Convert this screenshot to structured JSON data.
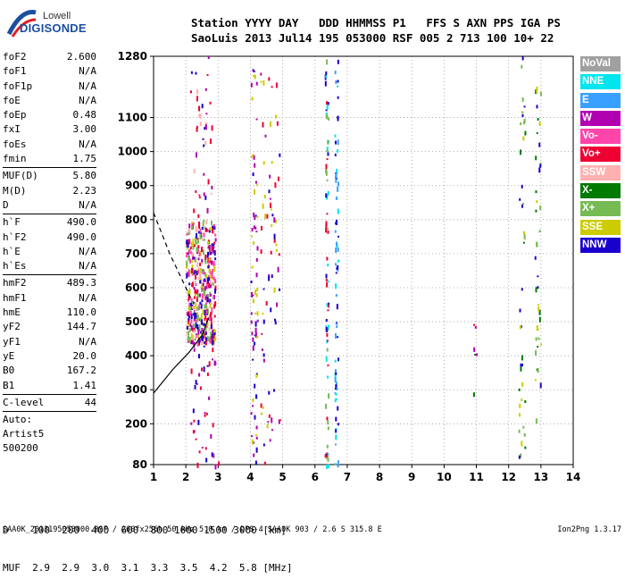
{
  "logo": {
    "line1": "Lowell",
    "line2": "DIGISONDE"
  },
  "header": {
    "line1": "Station YYYY DAY   DDD HHMMSS P1   FFS S AXN PPS IGA PS",
    "line2": "SaoLuis 2013 Jul14 195 053000 RSF 005 2 713 100 10+ 22"
  },
  "params_group1": [
    {
      "name": "foF2",
      "value": "2.600"
    },
    {
      "name": "foF1",
      "value": "N/A"
    },
    {
      "name": "foF1p",
      "value": "N/A"
    },
    {
      "name": "foE",
      "value": "N/A"
    },
    {
      "name": "foEp",
      "value": "0.48"
    },
    {
      "name": "fxI",
      "value": "3.00"
    },
    {
      "name": "foEs",
      "value": "N/A"
    },
    {
      "name": "fmin",
      "value": "1.75"
    }
  ],
  "params_group2": [
    {
      "name": "MUF(D)",
      "value": "5.80"
    },
    {
      "name": "M(D)",
      "value": "2.23"
    },
    {
      "name": "D",
      "value": "N/A"
    }
  ],
  "params_group3": [
    {
      "name": "h`F",
      "value": "490.0"
    },
    {
      "name": "h`F2",
      "value": "490.0"
    },
    {
      "name": "h`E",
      "value": "N/A"
    },
    {
      "name": "h`Es",
      "value": "N/A"
    }
  ],
  "params_group4": [
    {
      "name": "hmF2",
      "value": "489.3"
    },
    {
      "name": "hmF1",
      "value": "N/A"
    },
    {
      "name": "hmE",
      "value": "110.0"
    },
    {
      "name": "yF2",
      "value": "144.7"
    },
    {
      "name": "yF1",
      "value": "N/A"
    },
    {
      "name": "yE",
      "value": "20.0"
    },
    {
      "name": "B0",
      "value": "167.2"
    },
    {
      "name": "B1",
      "value": "1.41"
    }
  ],
  "clevel": {
    "name": "C-level",
    "value": "44"
  },
  "auto_lines": [
    "Auto:",
    "Artist5",
    "500200"
  ],
  "legend": [
    {
      "label": "NoVal",
      "color": "#a0a0a0"
    },
    {
      "label": "NNE",
      "color": "#00e5ee"
    },
    {
      "label": "E",
      "color": "#3aa0ff"
    },
    {
      "label": "W",
      "color": "#b000b0"
    },
    {
      "label": "Vo-",
      "color": "#ff44aa"
    },
    {
      "label": "Vo+",
      "color": "#ee0033"
    },
    {
      "label": "SSW",
      "color": "#ffb0b0"
    },
    {
      "label": "X-",
      "color": "#007a00"
    },
    {
      "label": "X+",
      "color": "#77bb55"
    },
    {
      "label": "SSE",
      "color": "#cccc00"
    },
    {
      "label": "NNW",
      "color": "#1a00cc"
    }
  ],
  "dtable": {
    "line1": "D    100  200  400  600  800 1000 1500 3000 [km]",
    "line2": "MUF  2.9  2.9  3.0  3.1  3.3  3.5  4.2  5.8 [MHz]"
  },
  "footer": {
    "left": "SAA0K_2013195053000.RSF / 260fx256h 50 kHz 5.0 km / DPS-4 SAA0K 903 / 2.6 S 315.8 E",
    "right": "Ion2Png 1.3.17"
  },
  "chart_data": {
    "type": "scatter",
    "xlim": [
      1,
      14
    ],
    "ylim": [
      80,
      1280
    ],
    "x_ticks": [
      1,
      2,
      3,
      4,
      5,
      6,
      7,
      8,
      9,
      10,
      11,
      12,
      13,
      14
    ],
    "y_ticks": [
      80,
      200,
      300,
      400,
      500,
      600,
      700,
      800,
      900,
      1000,
      1100,
      1280
    ],
    "grid": "dotted",
    "legend_position": "right",
    "clusters": [
      {
        "x": [
          2.0,
          2.9
        ],
        "y": [
          440,
          800
        ],
        "colors": [
          "Vo+",
          "Vo-",
          "W",
          "SSW",
          "NNW",
          "SSE",
          "X+"
        ],
        "density": "high"
      },
      {
        "x": [
          2.1,
          2.8
        ],
        "y": [
          800,
          1280
        ],
        "colors": [
          "Vo+",
          "NNW",
          "W",
          "SSW"
        ],
        "density": "low"
      },
      {
        "x": [
          2.0,
          3.0
        ],
        "y": [
          80,
          440
        ],
        "colors": [
          "NNW",
          "W",
          "Vo+"
        ],
        "density": "low"
      },
      {
        "x": [
          4.0,
          4.2
        ],
        "y": [
          80,
          1280
        ],
        "colors": [
          "NNW",
          "W",
          "SSE"
        ],
        "density": "medium"
      },
      {
        "x": [
          4.3,
          4.9
        ],
        "y": [
          80,
          1280
        ],
        "colors": [
          "NNW",
          "W",
          "SSE",
          "Vo+"
        ],
        "density": "medium"
      },
      {
        "x": [
          6.3,
          6.4
        ],
        "y": [
          80,
          1280
        ],
        "colors": [
          "NNW",
          "NNE",
          "X+",
          "Vo+"
        ],
        "density": "medium"
      },
      {
        "x": [
          6.6,
          6.7
        ],
        "y": [
          80,
          1280
        ],
        "colors": [
          "NNE",
          "E",
          "NNW"
        ],
        "density": "medium"
      },
      {
        "x": [
          12.3,
          12.5
        ],
        "y": [
          80,
          1280
        ],
        "colors": [
          "X-",
          "X+",
          "SSE",
          "NNW"
        ],
        "density": "low"
      },
      {
        "x": [
          12.8,
          13.0
        ],
        "y": [
          150,
          1280
        ],
        "colors": [
          "X-",
          "X+",
          "SSE",
          "NNW"
        ],
        "density": "low"
      },
      {
        "x": [
          10.9,
          11.0
        ],
        "y": [
          150,
          560
        ],
        "colors": [
          "X-",
          "W",
          "Vo+"
        ],
        "density": "sparse"
      }
    ],
    "traces": [
      {
        "name": "dashed",
        "x": [
          1.0,
          1.5,
          1.9,
          2.2
        ],
        "y": [
          820,
          700,
          620,
          560
        ]
      },
      {
        "name": "solid",
        "x": [
          1.0,
          1.6,
          2.1,
          2.5,
          2.7
        ],
        "y": [
          290,
          360,
          410,
          460,
          510
        ]
      }
    ]
  }
}
